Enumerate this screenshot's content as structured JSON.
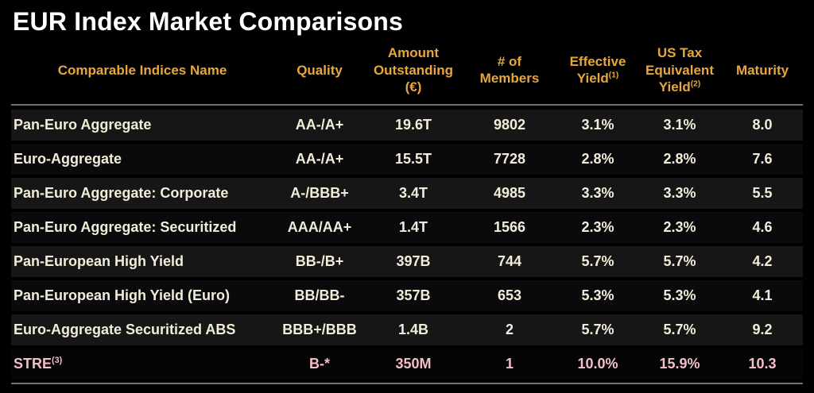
{
  "title": "EUR Index Market Comparisons",
  "colors": {
    "background": "#000000",
    "title_text": "#ffffff",
    "header_text": "#e8a63c",
    "row_text": "#f2ecd9",
    "highlight_text": "#f3bfc9",
    "divider": "#75716a",
    "row_stripe_light": "#161616",
    "row_stripe_dark": "#0a0a0c",
    "highlight_row_bg": "#050506"
  },
  "table": {
    "column_keys": [
      "name",
      "quality",
      "amount",
      "members",
      "effective_yield",
      "us_tax_yield",
      "maturity"
    ],
    "headers": [
      {
        "id": "name",
        "lines": [
          "Comparable Indices Name"
        ],
        "sup": ""
      },
      {
        "id": "quality",
        "lines": [
          "Quality"
        ],
        "sup": ""
      },
      {
        "id": "amount",
        "lines": [
          "Amount",
          "Outstanding",
          "(€)"
        ],
        "sup": ""
      },
      {
        "id": "members",
        "lines": [
          "# of",
          "Members"
        ],
        "sup": ""
      },
      {
        "id": "effective_yield",
        "lines": [
          "Effective",
          "Yield"
        ],
        "sup": "(1)"
      },
      {
        "id": "us_tax_yield",
        "lines": [
          "US Tax",
          "Equivalent",
          "Yield"
        ],
        "sup": "(2)"
      },
      {
        "id": "maturity",
        "lines": [
          "Maturity"
        ],
        "sup": ""
      }
    ],
    "rows": [
      {
        "name": "Pan-Euro Aggregate",
        "name_sup": "",
        "quality": "AA-/A+",
        "amount": "19.6T",
        "members": "9802",
        "effective_yield": "3.1%",
        "us_tax_yield": "3.1%",
        "maturity": "8.0",
        "highlight": false
      },
      {
        "name": "Euro-Aggregate",
        "name_sup": "",
        "quality": "AA-/A+",
        "amount": "15.5T",
        "members": "7728",
        "effective_yield": "2.8%",
        "us_tax_yield": "2.8%",
        "maturity": "7.6",
        "highlight": false
      },
      {
        "name": "Pan-Euro Aggregate: Corporate",
        "name_sup": "",
        "quality": "A-/BBB+",
        "amount": "3.4T",
        "members": "4985",
        "effective_yield": "3.3%",
        "us_tax_yield": "3.3%",
        "maturity": "5.5",
        "highlight": false
      },
      {
        "name": "Pan-Euro Aggregate: Securitized",
        "name_sup": "",
        "quality": "AAA/AA+",
        "amount": "1.4T",
        "members": "1566",
        "effective_yield": "2.3%",
        "us_tax_yield": "2.3%",
        "maturity": "4.6",
        "highlight": false
      },
      {
        "name": "Pan-European High Yield",
        "name_sup": "",
        "quality": "BB-/B+",
        "amount": "397B",
        "members": "744",
        "effective_yield": "5.7%",
        "us_tax_yield": "5.7%",
        "maturity": "4.2",
        "highlight": false
      },
      {
        "name": "Pan-European High Yield (Euro)",
        "name_sup": "",
        "quality": "BB/BB-",
        "amount": "357B",
        "members": "653",
        "effective_yield": "5.3%",
        "us_tax_yield": "5.3%",
        "maturity": "4.1",
        "highlight": false
      },
      {
        "name": "Euro-Aggregate Securitized ABS",
        "name_sup": "",
        "quality": "BBB+/BBB",
        "amount": "1.4B",
        "members": "2",
        "effective_yield": "5.7%",
        "us_tax_yield": "5.7%",
        "maturity": "9.2",
        "highlight": false
      },
      {
        "name": "STRE",
        "name_sup": "(3)",
        "quality": "B-*",
        "amount": "350M",
        "members": "1",
        "effective_yield": "10.0%",
        "us_tax_yield": "15.9%",
        "maturity": "10.3",
        "highlight": true
      }
    ]
  }
}
